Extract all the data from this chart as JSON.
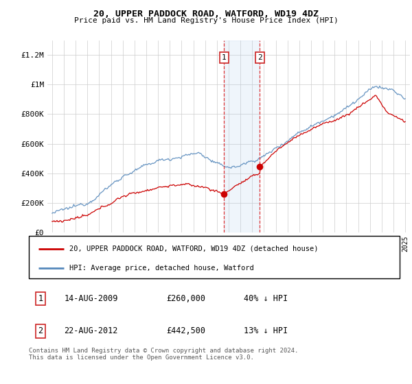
{
  "title": "20, UPPER PADDOCK ROAD, WATFORD, WD19 4DZ",
  "subtitle": "Price paid vs. HM Land Registry's House Price Index (HPI)",
  "ylim": [
    0,
    1300000
  ],
  "yticks": [
    0,
    200000,
    400000,
    600000,
    800000,
    1000000,
    1200000
  ],
  "ytick_labels": [
    "£0",
    "£200K",
    "£400K",
    "£600K",
    "£800K",
    "£1M",
    "£1.2M"
  ],
  "hpi_color": "#5588bb",
  "price_color": "#cc0000",
  "sale1_date": 2009.62,
  "sale1_price": 260000,
  "sale2_date": 2012.64,
  "sale2_price": 442500,
  "legend_line1": "20, UPPER PADDOCK ROAD, WATFORD, WD19 4DZ (detached house)",
  "legend_line2": "HPI: Average price, detached house, Watford",
  "footer": "Contains HM Land Registry data © Crown copyright and database right 2024.\nThis data is licensed under the Open Government Licence v3.0.",
  "background_color": "#ffffff",
  "grid_color": "#cccccc",
  "xstart": 1995,
  "xend": 2025
}
